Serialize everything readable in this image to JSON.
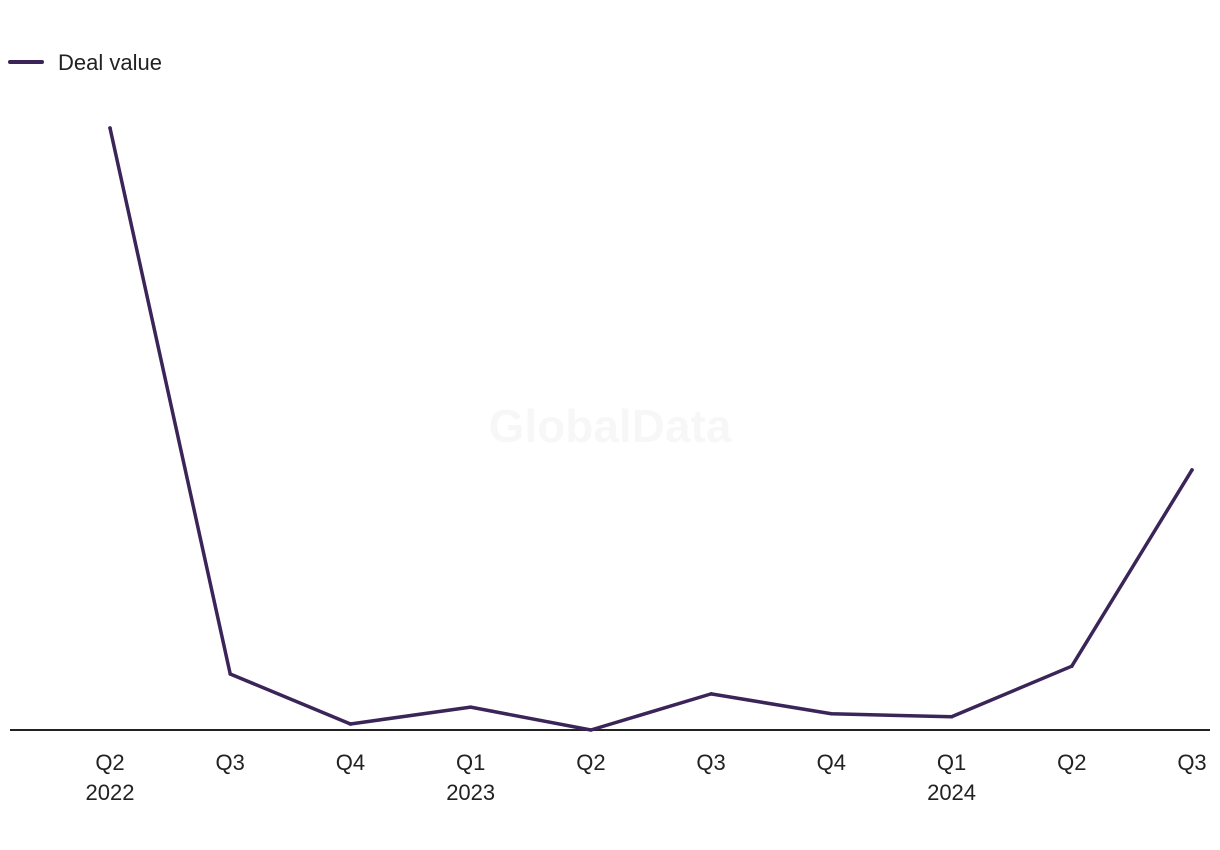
{
  "watermark": "GlobalData",
  "chart_data": {
    "type": "line",
    "categories": [
      {
        "quarter": "Q2",
        "year": "2022"
      },
      {
        "quarter": "Q3",
        "year": ""
      },
      {
        "quarter": "Q4",
        "year": ""
      },
      {
        "quarter": "Q1",
        "year": "2023"
      },
      {
        "quarter": "Q2",
        "year": ""
      },
      {
        "quarter": "Q3",
        "year": ""
      },
      {
        "quarter": "Q4",
        "year": ""
      },
      {
        "quarter": "Q1",
        "year": "2024"
      },
      {
        "quarter": "Q2",
        "year": ""
      },
      {
        "quarter": "Q3",
        "year": ""
      }
    ],
    "series": [
      {
        "name": "Deal value",
        "color": "#3b2558",
        "values": [
          100,
          9.3,
          1.0,
          3.8,
          0,
          6.0,
          2.7,
          2.2,
          10.6,
          43.2
        ]
      }
    ],
    "legend_position": "top-left",
    "grid": false,
    "y_axis_labels": false,
    "ylim": [
      0,
      100
    ]
  }
}
